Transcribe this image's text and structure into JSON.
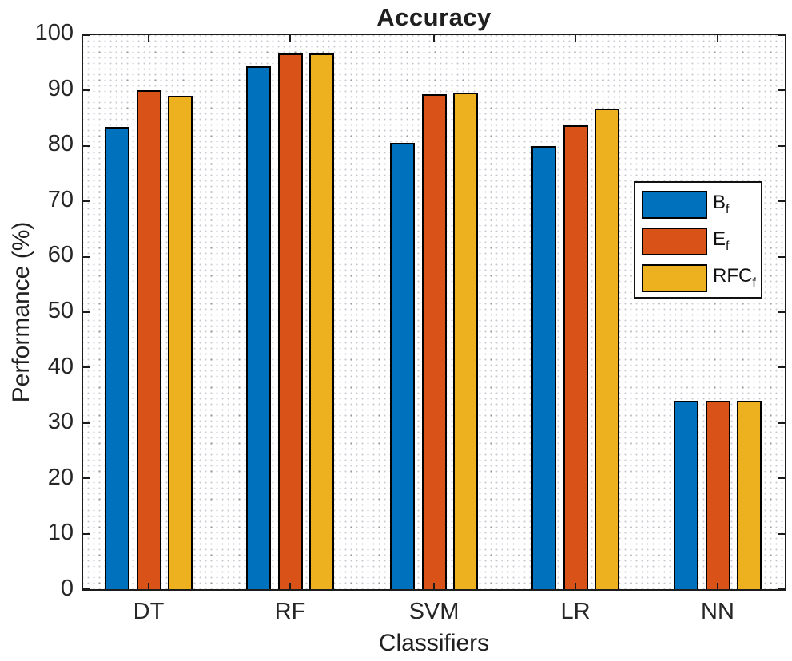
{
  "chart_data": {
    "type": "bar",
    "title": "Accuracy",
    "xlabel": "Classifiers",
    "ylabel": "Performance (%)",
    "ylim": [
      0,
      100
    ],
    "yticks": [
      0,
      10,
      20,
      30,
      40,
      50,
      60,
      70,
      80,
      90,
      100
    ],
    "categories": [
      "DT",
      "RF",
      "SVM",
      "LR",
      "NN"
    ],
    "series": [
      {
        "name": "Bf",
        "legend_main": "B",
        "legend_sub": "f",
        "color": "#0072BD",
        "values": [
          83.5,
          94.4,
          80.5,
          80.0,
          34.0
        ]
      },
      {
        "name": "Ef",
        "legend_main": "E",
        "legend_sub": "f",
        "color": "#D95319",
        "values": [
          90.0,
          96.7,
          89.3,
          83.7,
          34.0
        ]
      },
      {
        "name": "RFCf",
        "legend_main": "RFC",
        "legend_sub": "f",
        "color": "#EDB120",
        "values": [
          89.0,
          96.7,
          89.6,
          86.7,
          34.0
        ]
      }
    ],
    "grid": "dotted-minor",
    "legend_position": "middle-right",
    "bar_edge_color": "#000000",
    "axis_color": "#1c1c1c"
  }
}
